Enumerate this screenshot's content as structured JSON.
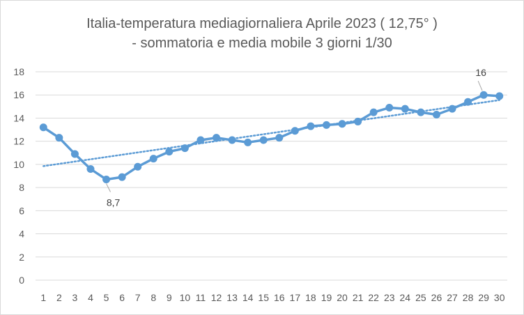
{
  "chart_data": {
    "type": "line",
    "title_line1": "Italia-temperatura mediagiornaliera Aprile 2023 ( 12,75° )",
    "title_line2": "- sommatoria e media mobile 3 giorni 1/30",
    "x": [
      1,
      2,
      3,
      4,
      5,
      6,
      7,
      8,
      9,
      10,
      11,
      12,
      13,
      14,
      15,
      16,
      17,
      18,
      19,
      20,
      21,
      22,
      23,
      24,
      25,
      26,
      27,
      28,
      29,
      30
    ],
    "series": [
      {
        "values": [
          13.2,
          12.3,
          10.9,
          9.6,
          8.7,
          8.9,
          9.8,
          10.5,
          11.1,
          11.4,
          12.1,
          12.3,
          12.1,
          11.9,
          12.1,
          12.3,
          12.9,
          13.3,
          13.4,
          13.5,
          13.7,
          14.5,
          14.9,
          14.8,
          14.5,
          14.3,
          14.8,
          15.4,
          16.0,
          15.9
        ],
        "color": "#5b9bd5"
      }
    ],
    "trendline": {
      "type": "linear",
      "style": "dotted",
      "color": "#5b9bd5"
    },
    "data_labels": [
      {
        "x": 5,
        "text": "8,7"
      },
      {
        "x": 29,
        "text": "16"
      }
    ],
    "yticks": [
      "0",
      "2",
      "4",
      "6",
      "8",
      "10",
      "12",
      "14",
      "16",
      "18"
    ],
    "ylim": [
      0,
      18
    ],
    "grid": "horizontal",
    "legend": "none",
    "gridline_color": "#d9d9d9"
  }
}
